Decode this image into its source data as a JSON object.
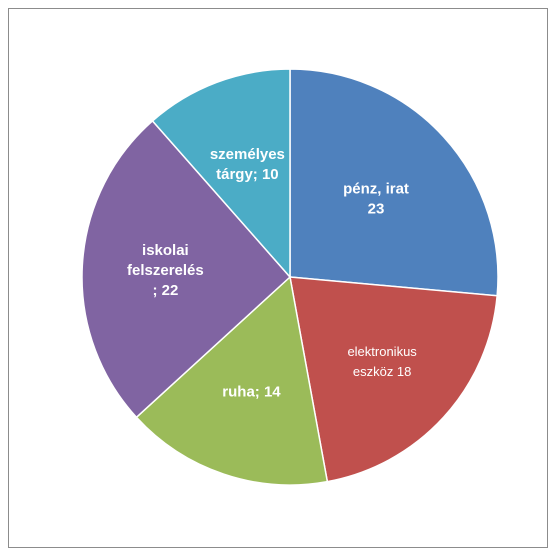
{
  "chart_data": {
    "type": "pie",
    "title": "",
    "start_angle_deg": 0,
    "slices": [
      {
        "label_lines": [
          "pénz, irat",
          "23"
        ],
        "value": 23,
        "color": "#4F81BD"
      },
      {
        "label_lines": [
          "elektronikus",
          "eszköz 18"
        ],
        "value": 18,
        "color": "#C0504D"
      },
      {
        "label_lines": [
          "ruha; 14"
        ],
        "value": 14,
        "color": "#9BBB59"
      },
      {
        "label_lines": [
          "iskolai",
          "felszerelés",
          "; 22"
        ],
        "value": 22,
        "color": "#8064A2"
      },
      {
        "label_lines": [
          "személyes",
          "tárgy; 10"
        ],
        "value": 10,
        "color": "#4BACC6"
      }
    ],
    "legend": "none"
  }
}
